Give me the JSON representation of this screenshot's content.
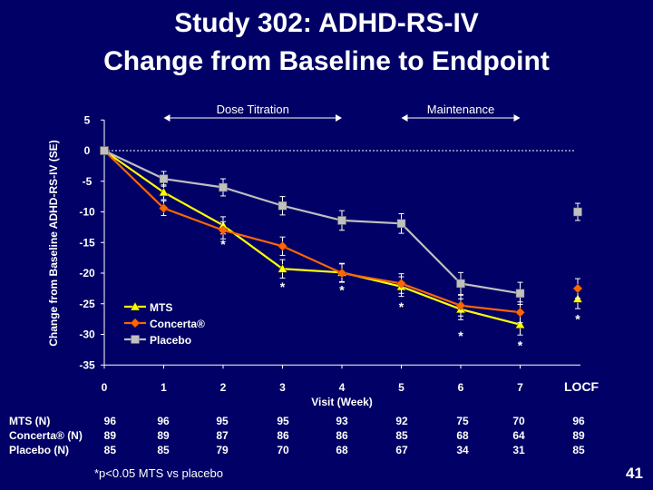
{
  "title_line1": "Study 302: ADHD-RS-IV",
  "title_line2": "Change from Baseline to Endpoint",
  "slide_number": "41",
  "footnote": "*p<0.05 MTS vs placebo",
  "locf_label": "LOCF",
  "colors": {
    "background": "#000066",
    "mts": "#ffff00",
    "concerta": "#ff6600",
    "placebo": "#c0c0c0"
  },
  "chart_data": {
    "type": "line",
    "ylabel": "Change from Baseline ADHD-RS-IV (SE)",
    "xlabel": "Visit (Week)",
    "ylim": [
      -35,
      5
    ],
    "yticks": [
      "5",
      "0",
      "-5",
      "-10",
      "-15",
      "-20",
      "-25",
      "-30",
      "-35"
    ],
    "yticks_values": [
      5,
      0,
      -5,
      -10,
      -15,
      -20,
      -25,
      -30,
      -35
    ],
    "categories": [
      "0",
      "1",
      "2",
      "3",
      "4",
      "5",
      "6",
      "7"
    ],
    "phases": [
      {
        "label": "Dose Titration",
        "from": 1,
        "to": 4
      },
      {
        "label": "Maintenance",
        "from": 5,
        "to": 7
      }
    ],
    "reference_line": 0,
    "series": [
      {
        "name": "MTS",
        "marker": "triangle",
        "values": [
          0,
          -6.8,
          -12.2,
          -19.3,
          -19.9,
          -22.2,
          -25.9,
          -28.4
        ],
        "errors": [
          0,
          1.2,
          1.4,
          1.5,
          1.5,
          1.6,
          1.7,
          1.7
        ],
        "locf": -24.2,
        "locf_error": 1.6
      },
      {
        "name": "Concerta®",
        "marker": "diamond",
        "values": [
          0,
          -9.4,
          -13.0,
          -15.6,
          -20.0,
          -21.7,
          -25.3,
          -26.4
        ],
        "errors": [
          0,
          1.2,
          1.4,
          1.5,
          1.5,
          1.6,
          1.7,
          1.7
        ],
        "locf": -22.5,
        "locf_error": 1.6
      },
      {
        "name": "Placebo",
        "marker": "square",
        "values": [
          0,
          -4.6,
          -6.0,
          -9.0,
          -11.4,
          -11.9,
          -21.7,
          -23.3
        ],
        "errors": [
          0,
          1.2,
          1.4,
          1.5,
          1.6,
          1.6,
          1.8,
          1.8
        ],
        "locf": -10.0,
        "locf_error": 1.4
      }
    ],
    "significance_markers": [
      {
        "x": 2,
        "y": -14.8,
        "label": "*"
      },
      {
        "x": 3,
        "y": -21.8,
        "label": "*"
      },
      {
        "x": 4,
        "y": -22.3,
        "label": "*"
      },
      {
        "x": 5,
        "y": -25.0,
        "label": "*"
      },
      {
        "x": 6,
        "y": -29.8,
        "label": "*"
      },
      {
        "x": 7,
        "y": -31.3,
        "label": "*"
      },
      {
        "x": "LOCF",
        "y": -27.0,
        "label": "*"
      }
    ]
  },
  "table": {
    "rows": [
      {
        "label": "MTS (N)",
        "values": [
          "96",
          "96",
          "95",
          "95",
          "93",
          "92",
          "75",
          "70",
          "96"
        ]
      },
      {
        "label": "Concerta® (N)",
        "values": [
          "89",
          "89",
          "87",
          "86",
          "86",
          "85",
          "68",
          "64",
          "89"
        ]
      },
      {
        "label": "Placebo (N)",
        "values": [
          "85",
          "85",
          "79",
          "70",
          "68",
          "67",
          "34",
          "31",
          "85"
        ]
      }
    ]
  }
}
